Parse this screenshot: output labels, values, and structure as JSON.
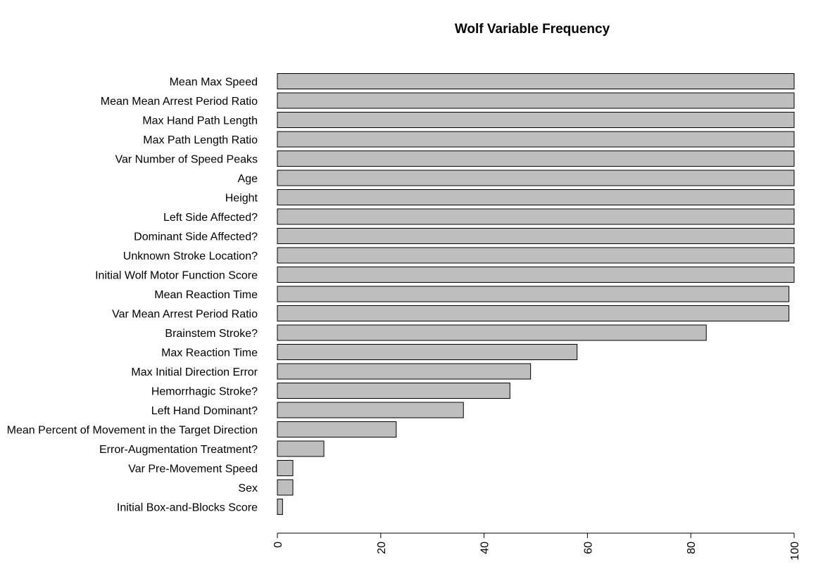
{
  "chart_data": {
    "type": "bar",
    "orientation": "horizontal",
    "title": "Wolf Variable Frequency",
    "xlabel": "",
    "ylabel": "",
    "categories": [
      "Mean Max Speed",
      "Mean Mean Arrest Period Ratio",
      "Max Hand Path Length",
      "Max Path Length Ratio",
      "Var Number of Speed Peaks",
      "Age",
      "Height",
      "Left Side Affected?",
      "Dominant Side Affected?",
      "Unknown Stroke Location?",
      "Initial Wolf Motor Function Score",
      "Mean Reaction Time",
      "Var Mean Arrest Period Ratio",
      "Brainstem Stroke?",
      "Max Reaction Time",
      "Max Initial Direction Error",
      "Hemorrhagic Stroke?",
      "Left Hand Dominant?",
      "Mean Percent of Movement in the Target Direction",
      "Error-Augmentation Treatment?",
      "Var Pre-Movement Speed",
      "Sex",
      "Initial Box-and-Blocks Score"
    ],
    "values": [
      100,
      100,
      100,
      100,
      100,
      100,
      100,
      100,
      100,
      100,
      100,
      99,
      99,
      83,
      58,
      49,
      45,
      36,
      23,
      9,
      3,
      3,
      1
    ],
    "xlim": [
      0,
      100
    ],
    "x_ticks": [
      "0",
      "20",
      "40",
      "60",
      "80",
      "100"
    ],
    "grid": false,
    "colors": {
      "bar_fill": "#bebebe",
      "bar_stroke": "#000000"
    }
  }
}
